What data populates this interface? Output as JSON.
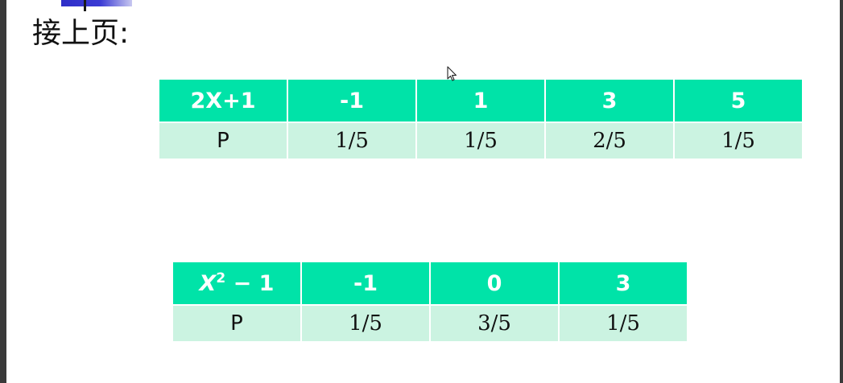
{
  "heading": "接上页:",
  "table1": {
    "header": [
      "2X+1",
      "-1",
      "1",
      "3",
      "5"
    ],
    "row": [
      "P",
      "1/5",
      "1/5",
      "2/5",
      "1/5"
    ]
  },
  "table2": {
    "header_label": {
      "var": "X",
      "exp": "2",
      "rest": " − 1"
    },
    "header": [
      "-1",
      "0",
      "3"
    ],
    "row": [
      "P",
      "1/5",
      "3/5",
      "1/5"
    ]
  },
  "colors": {
    "header_bg": "#00e3a8",
    "body_bg": "#cbf3e1",
    "accent": "#2e2ec8"
  },
  "icons": [
    "mouse-pointer-icon"
  ]
}
